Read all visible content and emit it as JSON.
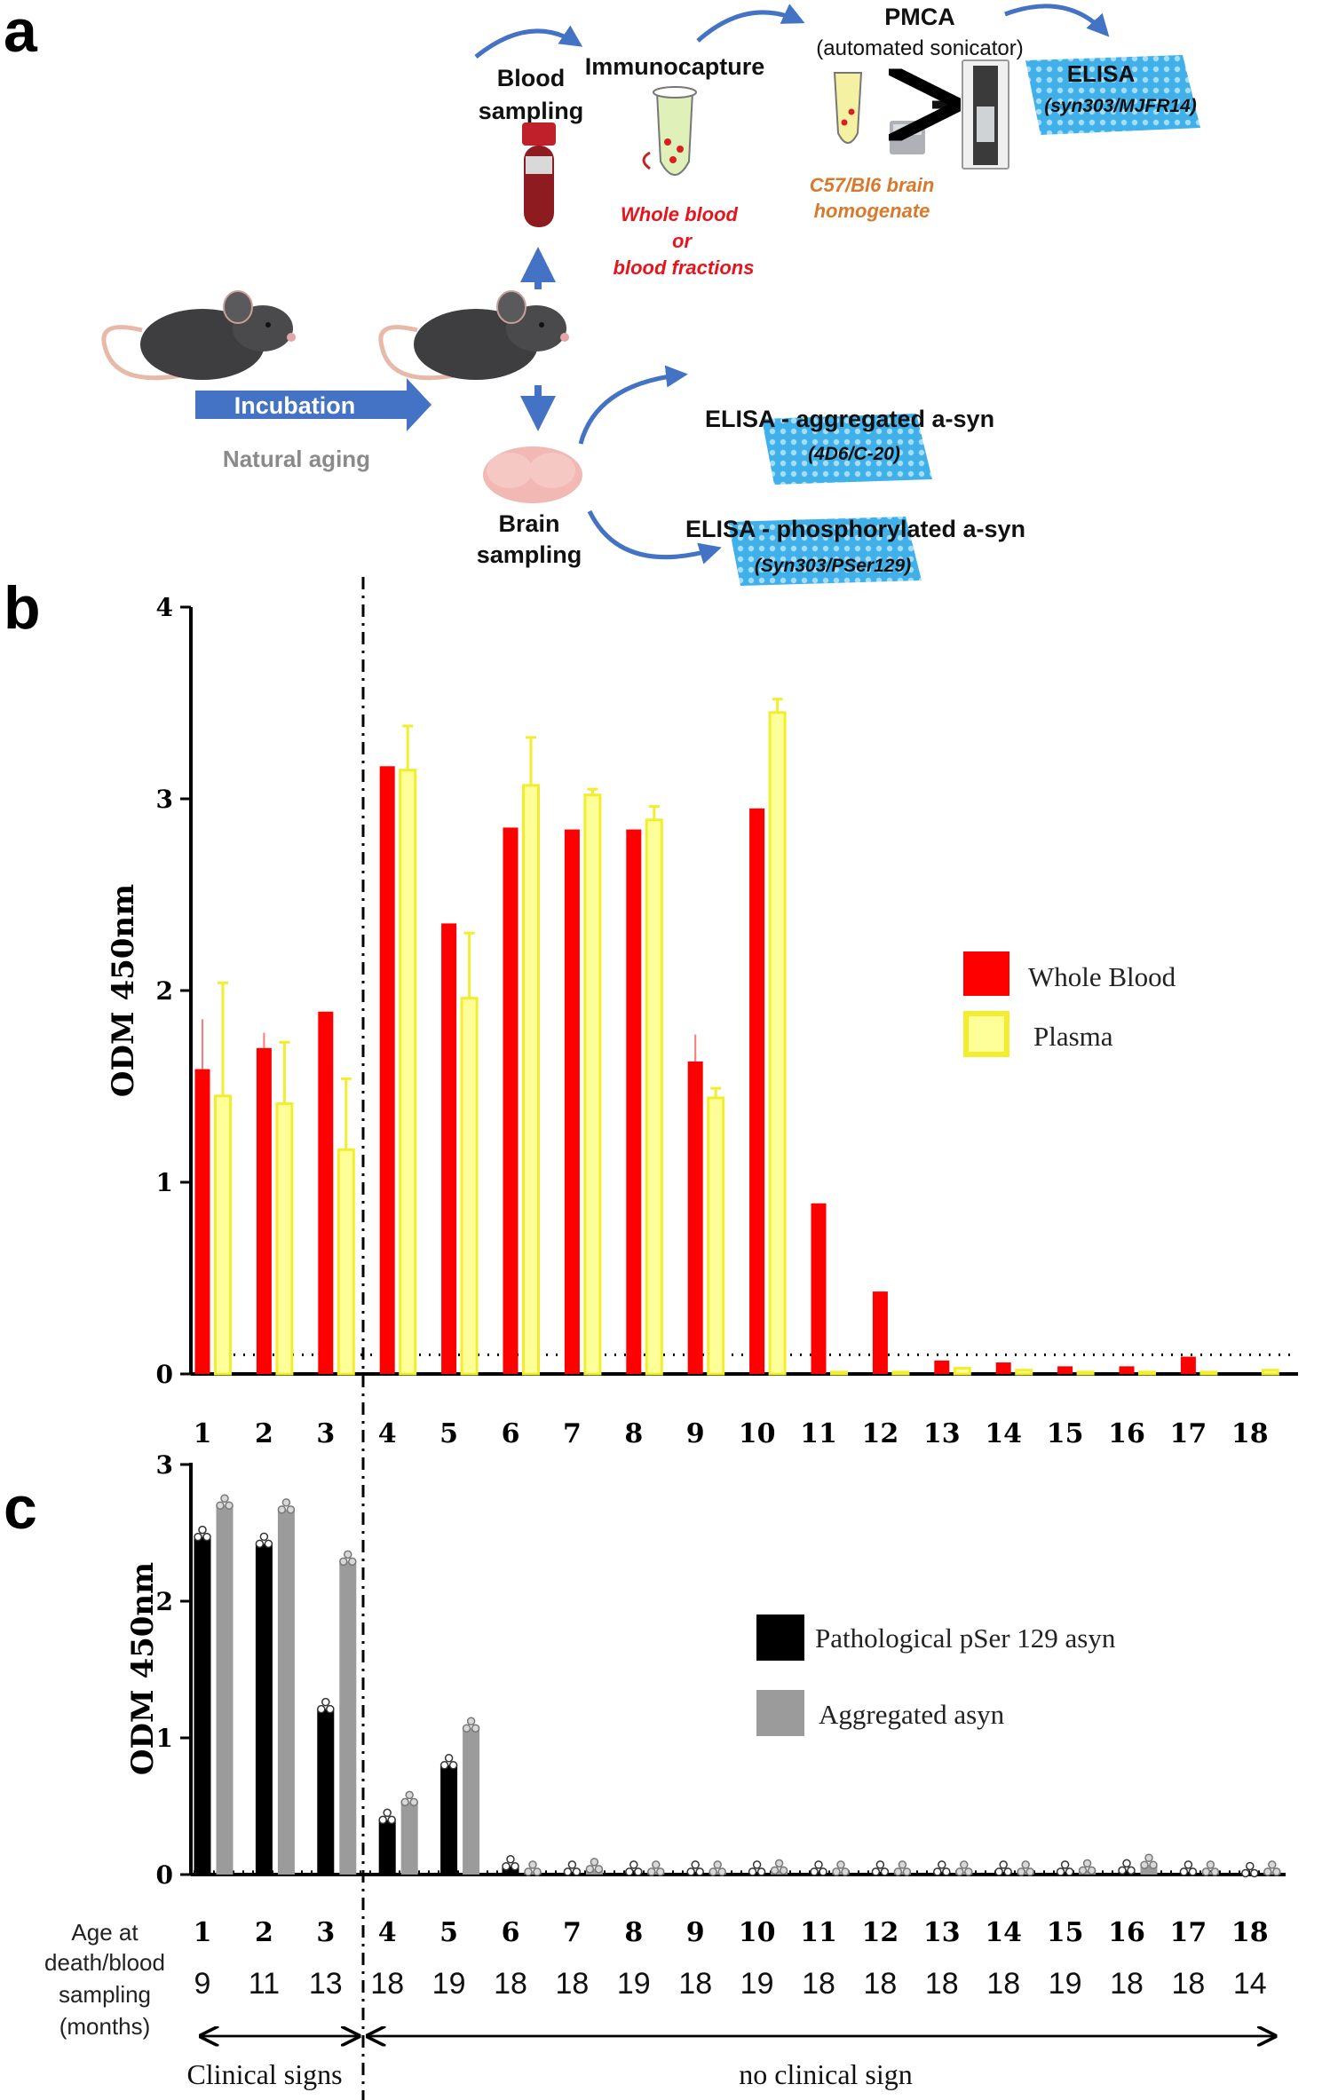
{
  "panels": {
    "a": "a",
    "b": "b",
    "c": "c"
  },
  "workflow": {
    "blood_sampling": [
      "Blood",
      "sampling"
    ],
    "immunocapture": "Immunocapture",
    "whole_blood": [
      "Whole blood",
      "or",
      "blood fractions"
    ],
    "pmca": "PMCA",
    "pmca_sub": "(automated sonicator)",
    "brain_homogenate": [
      "C57/Bl6 brain",
      "homogenate"
    ],
    "elisa_blood": "ELISA",
    "elisa_blood_abs": "(syn303/MJFR14)",
    "incubation": "Incubation",
    "natural_aging": "Natural aging",
    "elisa_aggregated": "ELISA - aggregated a-syn",
    "elisa_aggregated_abs": "(4D6/C-20)",
    "elisa_phospho": "ELISA - phosphorylated a-syn",
    "elisa_phospho_abs": "(Syn303/PSer129)",
    "brain_sampling": [
      "Brain",
      "sampling"
    ]
  },
  "colors": {
    "whole_blood": "#ff0000",
    "plasma_fill": "#ffff99",
    "plasma_edge": "#f2ee2e",
    "pser": "#000000",
    "aggregated": "#9b9b9b",
    "arrow": "#4472c4"
  },
  "chart_data": [
    {
      "id": "b",
      "type": "bar",
      "ylabel": "ODM 450nm",
      "ylim": [
        0,
        4
      ],
      "yticks": [
        "0",
        "1",
        "2",
        "3",
        "4"
      ],
      "categories": [
        "1",
        "2",
        "3",
        "4",
        "5",
        "6",
        "7",
        "8",
        "9",
        "10",
        "11",
        "12",
        "13",
        "14",
        "15",
        "16",
        "17",
        "18"
      ],
      "threshold": 0.1,
      "separator_after_category": 3,
      "legend_position": "right",
      "series": [
        {
          "name": "Whole Blood",
          "values": [
            1.59,
            1.7,
            1.89,
            3.17,
            2.35,
            2.85,
            2.84,
            2.84,
            1.63,
            2.95,
            0.89,
            0.43,
            0.07,
            0.06,
            0.04,
            0.04,
            0.09,
            0.0
          ],
          "errors": [
            0.26,
            0.08,
            0.0,
            0.0,
            0.0,
            0.0,
            0.0,
            0.0,
            0.14,
            0.0,
            0.0,
            0.0,
            0.0,
            0.0,
            0.0,
            0.0,
            0.0,
            0.0
          ]
        },
        {
          "name": "Plasma",
          "values": [
            1.45,
            1.41,
            1.17,
            3.15,
            1.96,
            3.07,
            3.02,
            2.89,
            1.44,
            3.45,
            0.01,
            0.01,
            0.03,
            0.02,
            0.01,
            0.01,
            0.01,
            0.02
          ],
          "errors": [
            0.59,
            0.32,
            0.37,
            0.23,
            0.34,
            0.25,
            0.03,
            0.07,
            0.05,
            0.07,
            0.0,
            0.0,
            0.0,
            0.0,
            0.0,
            0.0,
            0.0,
            0.0
          ]
        }
      ]
    },
    {
      "id": "c",
      "type": "bar",
      "ylabel": "ODM 450nm",
      "ylim": [
        0,
        3
      ],
      "yticks": [
        "0",
        "1",
        "2",
        "3"
      ],
      "categories": [
        "1",
        "2",
        "3",
        "4",
        "5",
        "6",
        "7",
        "8",
        "9",
        "10",
        "11",
        "12",
        "13",
        "14",
        "15",
        "16",
        "17",
        "18"
      ],
      "threshold": 0.02,
      "separator_after_category": 3,
      "legend_position": "right",
      "series": [
        {
          "name": "Pathological pSer 129 asyn",
          "values": [
            2.47,
            2.42,
            1.21,
            0.4,
            0.8,
            0.06,
            0.02,
            0.02,
            0.02,
            0.02,
            0.02,
            0.02,
            0.02,
            0.02,
            0.02,
            0.03,
            0.02,
            0.01
          ]
        },
        {
          "name": "Aggregated asyn",
          "values": [
            2.7,
            2.67,
            2.29,
            0.53,
            1.07,
            0.02,
            0.04,
            0.02,
            0.02,
            0.03,
            0.02,
            0.02,
            0.02,
            0.02,
            0.03,
            0.07,
            0.02,
            0.02
          ]
        }
      ],
      "age_row_label": [
        "Age at",
        "death/blood",
        "sampling",
        "(months)"
      ],
      "ages": [
        "9",
        "11",
        "13",
        "18",
        "19",
        "18",
        "18",
        "19",
        "18",
        "19",
        "18",
        "18",
        "18",
        "18",
        "19",
        "18",
        "18",
        "14"
      ],
      "clinical_signs": "Clinical signs",
      "no_clinical_sign": "no clinical sign"
    }
  ]
}
